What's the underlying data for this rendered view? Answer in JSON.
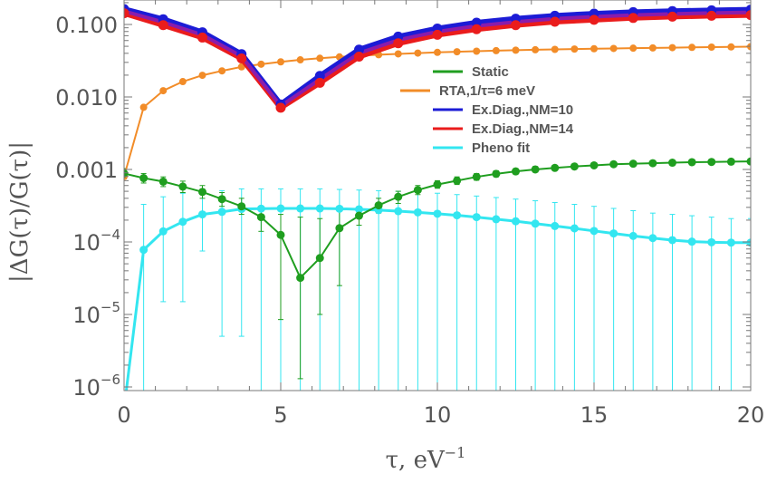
{
  "chart_data": {
    "type": "line",
    "xlabel": "τ, eV",
    "xlabel_superscript": "−1",
    "ylabel": "|ΔG(τ)/G(τ)|",
    "xlim": [
      0,
      20
    ],
    "ylim": [
      1e-06,
      0.18
    ],
    "yscale": "log",
    "grid": false,
    "legend_position": "center-right",
    "x_ticks": [
      0,
      5,
      10,
      15,
      20
    ],
    "x_tick_labels": [
      "0",
      "5",
      "10",
      "15",
      "20"
    ],
    "y_ticks": [
      {
        "value": 0.1,
        "base": "0.100",
        "exp": ""
      },
      {
        "value": 0.01,
        "base": "0.010",
        "exp": ""
      },
      {
        "value": 0.001,
        "base": "0.001",
        "exp": ""
      },
      {
        "value": 0.0001,
        "base": "10",
        "exp": "−4"
      },
      {
        "value": 1e-05,
        "base": "10",
        "exp": "−5"
      },
      {
        "value": 1e-06,
        "base": "10",
        "exp": "−6"
      }
    ],
    "series": [
      {
        "name": "Static",
        "color": "#1f9e1f",
        "x": [
          0,
          0.625,
          1.25,
          1.875,
          2.5,
          3.125,
          3.75,
          4.375,
          5.0,
          5.625,
          6.25,
          6.875,
          7.5,
          8.125,
          8.75,
          9.375,
          10.0,
          10.625,
          11.25,
          11.875,
          12.5,
          13.125,
          13.75,
          14.375,
          15.0,
          15.625,
          16.25,
          16.875,
          17.5,
          18.125,
          18.75,
          19.375,
          20.0
        ],
        "y": [
          0.00088,
          0.00076,
          0.00068,
          0.00058,
          0.00049,
          0.00039,
          0.00031,
          0.00022,
          0.000125,
          3.2e-05,
          6e-05,
          0.000155,
          0.00023,
          0.00032,
          0.00042,
          0.00052,
          0.00062,
          0.0007,
          0.00079,
          0.00087,
          0.00094,
          0.001,
          0.00105,
          0.0011,
          0.00114,
          0.00118,
          0.0012,
          0.00122,
          0.00124,
          0.00126,
          0.00127,
          0.00128,
          0.00129
        ],
        "err_lo": [
          0.00074,
          0.00065,
          0.00058,
          0.00048,
          0.0004,
          0.00031,
          0.00024,
          0.00014,
          8.5e-06,
          1.3e-06,
          1e-05,
          2.5e-05,
          0.00017,
          0.00025,
          0.00034,
          0.00045,
          0.00055,
          0.00062,
          0.00071,
          0.00079,
          0.00086,
          0.00092,
          0.00097,
          0.00102,
          0.00106,
          0.0011,
          0.00112,
          0.00114,
          0.00116,
          0.00118,
          0.00119,
          0.0012,
          0.00121
        ],
        "err_hi": [
          0.00103,
          0.00088,
          0.00079,
          0.00069,
          0.0006,
          0.00048,
          0.0004,
          0.0003,
          0.00024,
          0.00022,
          0.00021,
          0.00029,
          0.00029,
          0.0004,
          0.0005,
          0.0006,
          0.0007,
          0.00079,
          0.00088,
          0.00096,
          0.00103,
          0.0011,
          0.00114,
          0.00119,
          0.00123,
          0.00127,
          0.00129,
          0.00131,
          0.00133,
          0.00135,
          0.00136,
          0.00137,
          0.00138
        ]
      },
      {
        "name": "RTA,1/τ=6 meV",
        "color": "#f28c28",
        "x": [
          0,
          0.625,
          1.25,
          1.875,
          2.5,
          3.125,
          3.75,
          4.375,
          5.0,
          5.625,
          6.25,
          6.875,
          7.5,
          8.125,
          8.75,
          9.375,
          10.0,
          10.625,
          11.25,
          11.875,
          12.5,
          13.125,
          13.75,
          14.375,
          15.0,
          15.625,
          16.25,
          16.875,
          17.5,
          18.125,
          18.75,
          19.375,
          20.0
        ],
        "y": [
          0.0008,
          0.0072,
          0.0122,
          0.0163,
          0.0199,
          0.0229,
          0.026,
          0.0283,
          0.0305,
          0.0325,
          0.0342,
          0.0357,
          0.037,
          0.0382,
          0.0393,
          0.0403,
          0.0412,
          0.042,
          0.0428,
          0.0435,
          0.0442,
          0.0448,
          0.0453,
          0.0458,
          0.0463,
          0.0467,
          0.0471,
          0.0475,
          0.0479,
          0.0483,
          0.0487,
          0.049,
          0.0494
        ]
      },
      {
        "name": "Ex.Diag.,NM=10",
        "color": "#1c1cd6",
        "x": [
          0,
          1.25,
          2.5,
          3.75,
          5.0,
          6.25,
          7.5,
          8.75,
          10.0,
          11.25,
          12.5,
          13.75,
          15.0,
          16.25,
          17.5,
          18.75,
          20.0
        ],
        "y": [
          0.163,
          0.118,
          0.078,
          0.039,
          0.0079,
          0.0195,
          0.045,
          0.068,
          0.088,
          0.106,
          0.12,
          0.132,
          0.141,
          0.148,
          0.153,
          0.157,
          0.16
        ]
      },
      {
        "name": "Ex.Diag.,NM=14",
        "color": "#ea1c1c",
        "x": [
          0,
          1.25,
          2.5,
          3.75,
          5.0,
          6.25,
          7.5,
          8.75,
          10.0,
          11.25,
          12.5,
          13.75,
          15.0,
          16.25,
          17.5,
          18.75,
          20.0
        ],
        "y": [
          0.143,
          0.098,
          0.066,
          0.034,
          0.0071,
          0.0157,
          0.036,
          0.055,
          0.072,
          0.086,
          0.098,
          0.109,
          0.116,
          0.123,
          0.128,
          0.132,
          0.135
        ]
      },
      {
        "name": "Pheno fit",
        "color": "#33e6f0",
        "x": [
          0,
          0.625,
          1.25,
          1.875,
          2.5,
          3.125,
          3.75,
          4.375,
          5.0,
          5.625,
          6.25,
          6.875,
          7.5,
          8.125,
          8.75,
          9.375,
          10.0,
          10.625,
          11.25,
          11.875,
          12.5,
          13.125,
          13.75,
          14.375,
          15.0,
          15.625,
          16.25,
          16.875,
          17.5,
          18.125,
          18.75,
          19.375,
          20.0
        ],
        "y": [
          5e-07,
          7.8e-05,
          0.00014,
          0.00019,
          0.00024,
          0.00026,
          0.000285,
          0.000288,
          0.00029,
          0.00029,
          0.00029,
          0.000287,
          0.000282,
          0.000275,
          0.000266,
          0.000256,
          0.000245,
          0.000233,
          0.00022,
          0.000206,
          0.000193,
          0.000179,
          0.000166,
          0.000154,
          0.000142,
          0.000131,
          0.000121,
          0.000113,
          0.000106,
          0.000101,
          9.9e-05,
          9.8e-05,
          9.8e-05
        ],
        "err_lo": [
          null,
          5e-07,
          1.5e-05,
          1.5e-05,
          7.5e-05,
          5e-06,
          5e-06,
          8e-07,
          8e-07,
          8e-07,
          8e-07,
          8e-07,
          8e-07,
          8e-07,
          8e-07,
          8e-07,
          8e-07,
          8e-07,
          8e-07,
          8e-07,
          8e-07,
          8e-07,
          8e-07,
          8e-07,
          8e-07,
          8e-07,
          8e-07,
          8e-07,
          8e-07,
          8e-07,
          8e-07,
          8e-07,
          8e-07
        ],
        "err_hi": [
          null,
          0.00033,
          0.00042,
          0.00047,
          0.00052,
          0.00051,
          0.00054,
          0.00054,
          0.00054,
          0.00054,
          0.00054,
          0.00053,
          0.00052,
          0.00051,
          0.0005,
          0.00049,
          0.00047,
          0.00045,
          0.00043,
          0.00041,
          0.00039,
          0.00037,
          0.00035,
          0.00033,
          0.00031,
          0.00029,
          0.00027,
          0.00025,
          0.00024,
          0.00023,
          0.00022,
          0.00021,
          0.00021
        ]
      }
    ],
    "legend": [
      {
        "label": "Static",
        "color": "#1f9e1f"
      },
      {
        "label": "RTA,1/τ=6 meV",
        "color": "#f28c28"
      },
      {
        "label": "Ex.Diag.,NM=10",
        "color": "#1c1cd6"
      },
      {
        "label": "Ex.Diag.,NM=14",
        "color": "#ea1c1c"
      },
      {
        "label": "Pheno fit",
        "color": "#33e6f0"
      }
    ]
  }
}
